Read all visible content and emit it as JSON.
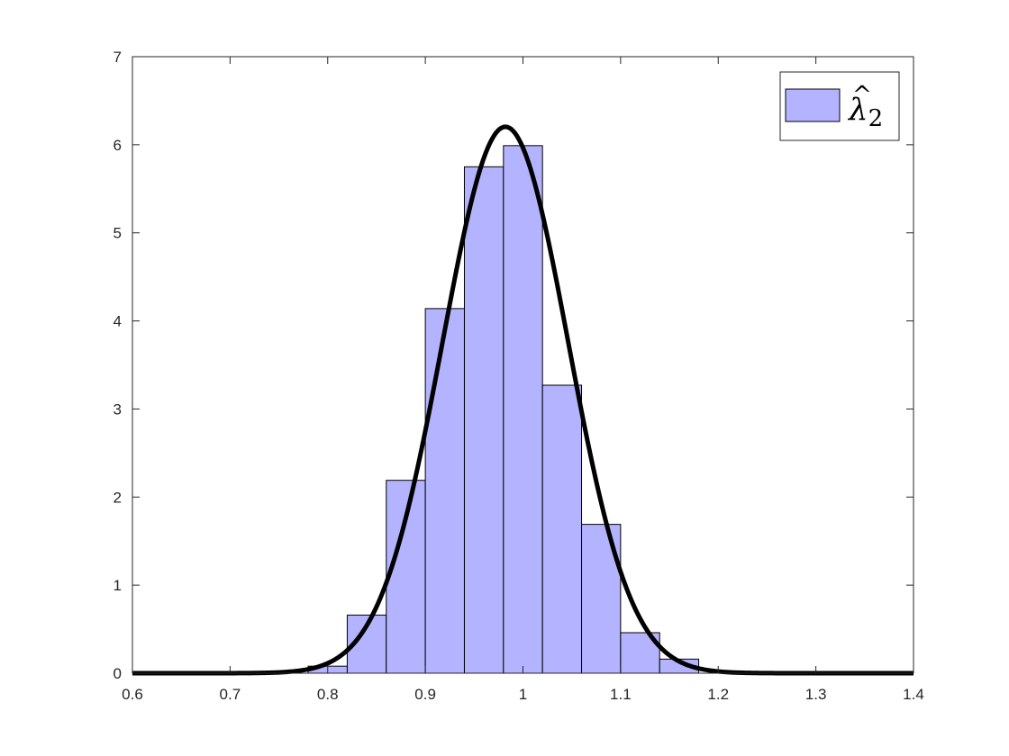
{
  "chart_data": {
    "type": "bar",
    "subtype": "histogram-with-density-curve",
    "title": "",
    "xlabel": "",
    "ylabel": "",
    "xlim": [
      0.6,
      1.4
    ],
    "ylim": [
      0,
      7
    ],
    "grid": false,
    "legend_position": "top-right",
    "bar_color": "#b3b3ff",
    "bar_edge_color": "#000000",
    "curve_color": "#000000",
    "x_ticks": [
      0.6,
      0.7,
      0.8,
      0.9,
      1.0,
      1.1,
      1.2,
      1.3,
      1.4
    ],
    "x_tick_labels": [
      "0.6",
      "0.7",
      "0.8",
      "0.9",
      "1",
      "1.1",
      "1.2",
      "1.3",
      "1.4"
    ],
    "y_ticks": [
      0,
      1,
      2,
      3,
      4,
      5,
      6,
      7
    ],
    "y_tick_labels": [
      "0",
      "1",
      "2",
      "3",
      "4",
      "5",
      "6",
      "7"
    ],
    "legend": {
      "base": "λ",
      "hat": "^",
      "subscript": "2"
    },
    "bins": [
      {
        "x0": 0.78,
        "x1": 0.82,
        "value": 0.08
      },
      {
        "x0": 0.82,
        "x1": 0.86,
        "value": 0.66
      },
      {
        "x0": 0.86,
        "x1": 0.9,
        "value": 2.19
      },
      {
        "x0": 0.9,
        "x1": 0.94,
        "value": 4.14
      },
      {
        "x0": 0.94,
        "x1": 0.98,
        "value": 5.75
      },
      {
        "x0": 0.98,
        "x1": 1.02,
        "value": 5.99
      },
      {
        "x0": 1.02,
        "x1": 1.06,
        "value": 3.27
      },
      {
        "x0": 1.06,
        "x1": 1.1,
        "value": 1.69
      },
      {
        "x0": 1.1,
        "x1": 1.14,
        "value": 0.46
      },
      {
        "x0": 1.14,
        "x1": 1.18,
        "value": 0.16
      }
    ],
    "density_curve": {
      "type": "normal",
      "mean": 0.982,
      "sd": 0.0643
    }
  }
}
